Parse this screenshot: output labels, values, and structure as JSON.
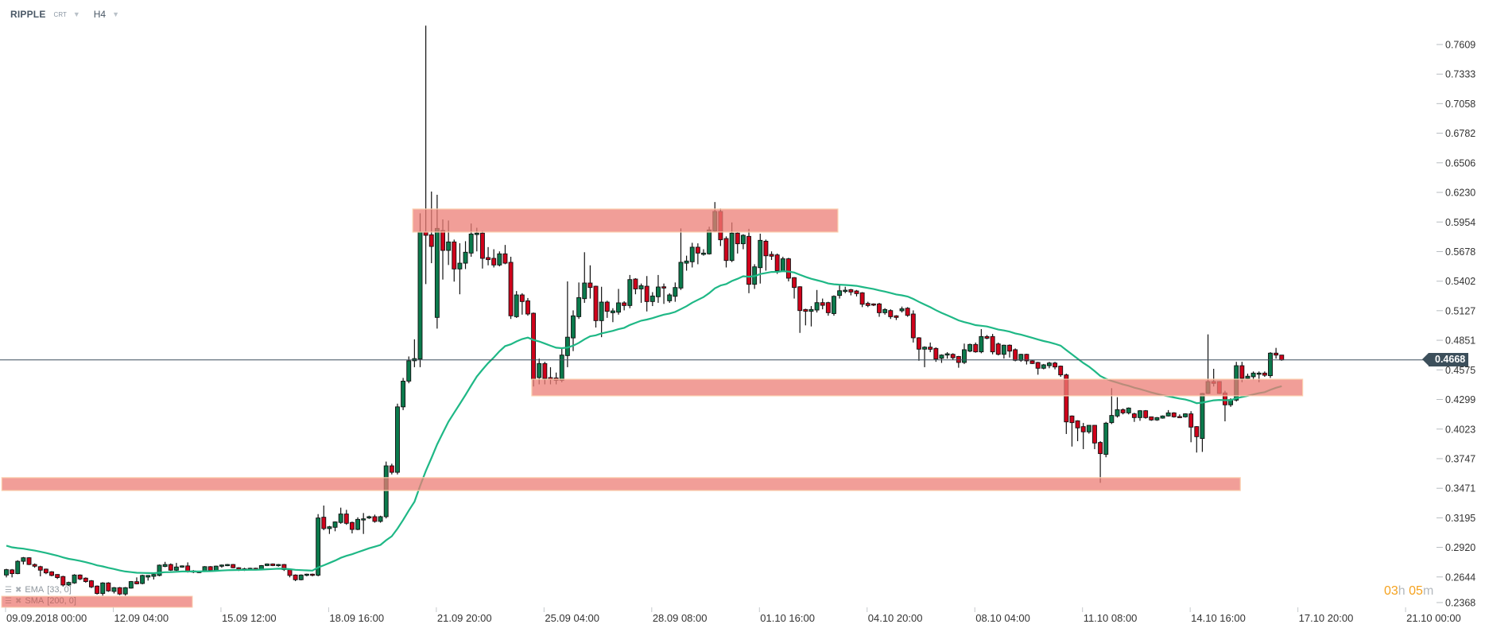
{
  "header": {
    "symbol": "RIPPLE",
    "type": "CRT",
    "timeframe": "H4"
  },
  "indicators": [
    {
      "name": "EMA",
      "params": "[33, 0]",
      "color": "#1fb886"
    },
    {
      "name": "SMA",
      "params": "[200,  0]",
      "highlighted": true
    }
  ],
  "countdown": {
    "hours": "03",
    "hours_unit": "h",
    "minutes": "05",
    "minutes_unit": "m"
  },
  "colors": {
    "up": "#0b7a4c",
    "down": "#d0021b",
    "zone": "#ec7e76",
    "price_line": "#3c4f5b"
  },
  "chart_data": {
    "type": "candlestick",
    "title": "RIPPLE H4",
    "current_price": "0.4668",
    "ylim": [
      0.2368,
      0.7609
    ],
    "y_ticks": [
      "0.7609",
      "0.7333",
      "0.7058",
      "0.6782",
      "0.6506",
      "0.6230",
      "0.5954",
      "0.5678",
      "0.5402",
      "0.5127",
      "0.4851",
      "0.4575",
      "0.4299",
      "0.4023",
      "0.3747",
      "0.3471",
      "0.3195",
      "0.2920",
      "0.2644",
      "0.2368"
    ],
    "x_ticks": [
      "09.09.2018  00:00",
      "12.09  04:00",
      "15.09  12:00",
      "18.09  16:00",
      "21.09  20:00",
      "25.09  04:00",
      "28.09  08:00",
      "01.10  16:00",
      "04.10  20:00",
      "08.10  04:00",
      "11.10  08:00",
      "14.10  16:00",
      "17.10  20:00",
      "21.10  00:00"
    ],
    "x_tick_every_candles": 19,
    "ema_period": 33,
    "zones": [
      {
        "price_low": 0.586,
        "price_high": 0.6075,
        "from_index": 71.7,
        "to_index": 146.7
      },
      {
        "price_low": 0.4333,
        "price_high": 0.4488,
        "from_index": 92.7,
        "to_index": 228.7
      },
      {
        "price_low": 0.345,
        "price_high": 0.357,
        "from_index": -0.8,
        "to_index": 217.7
      }
    ],
    "candles_ohlc": [
      [
        0.2662,
        0.272,
        0.264,
        0.2712
      ],
      [
        0.271,
        0.2718,
        0.264,
        0.2675
      ],
      [
        0.2675,
        0.28,
        0.267,
        0.279
      ],
      [
        0.279,
        0.283,
        0.276,
        0.2823
      ],
      [
        0.2823,
        0.2828,
        0.2755,
        0.276
      ],
      [
        0.276,
        0.277,
        0.273,
        0.2744
      ],
      [
        0.274,
        0.2748,
        0.265,
        0.2707
      ],
      [
        0.2717,
        0.2722,
        0.267,
        0.2682
      ],
      [
        0.2692,
        0.2698,
        0.265,
        0.2658
      ],
      [
        0.2667,
        0.267,
        0.2625,
        0.2638
      ],
      [
        0.2648,
        0.2655,
        0.2555,
        0.2569
      ],
      [
        0.2569,
        0.26,
        0.256,
        0.2593
      ],
      [
        0.2588,
        0.267,
        0.258,
        0.2662
      ],
      [
        0.2662,
        0.2668,
        0.2615,
        0.2625
      ],
      [
        0.2633,
        0.264,
        0.259,
        0.2601
      ],
      [
        0.2608,
        0.2615,
        0.254,
        0.2551
      ],
      [
        0.2559,
        0.2565,
        0.248,
        0.249
      ],
      [
        0.249,
        0.2595,
        0.247,
        0.2588
      ],
      [
        0.2588,
        0.2595,
        0.2505,
        0.2514
      ],
      [
        0.2509,
        0.255,
        0.249,
        0.2544
      ],
      [
        0.2544,
        0.255,
        0.2475,
        0.2485
      ],
      [
        0.2485,
        0.255,
        0.247,
        0.2544
      ],
      [
        0.254,
        0.2606,
        0.2535,
        0.2601
      ],
      [
        0.26,
        0.264,
        0.2575,
        0.258
      ],
      [
        0.2583,
        0.2665,
        0.2575,
        0.2658
      ],
      [
        0.2643,
        0.2662,
        0.261,
        0.2658
      ],
      [
        0.265,
        0.2672,
        0.262,
        0.2667
      ],
      [
        0.2658,
        0.276,
        0.265,
        0.2754
      ],
      [
        0.2742,
        0.2785,
        0.2735,
        0.276
      ],
      [
        0.276,
        0.277,
        0.27,
        0.2707
      ],
      [
        0.2707,
        0.2775,
        0.27,
        0.2737
      ],
      [
        0.2737,
        0.2752,
        0.273,
        0.2747
      ],
      [
        0.2747,
        0.278,
        0.2685,
        0.2692
      ],
      [
        0.27,
        0.2708,
        0.268,
        0.269
      ],
      [
        0.269,
        0.27,
        0.268,
        0.2695
      ],
      [
        0.2695,
        0.2745,
        0.269,
        0.274
      ],
      [
        0.274,
        0.2745,
        0.27,
        0.2705
      ],
      [
        0.2705,
        0.275,
        0.27,
        0.2745
      ],
      [
        0.2745,
        0.276,
        0.273,
        0.2755
      ],
      [
        0.2755,
        0.2765,
        0.2745,
        0.276
      ],
      [
        0.276,
        0.2765,
        0.2725,
        0.273
      ],
      [
        0.273,
        0.2735,
        0.27,
        0.2715
      ],
      [
        0.2715,
        0.273,
        0.27,
        0.272
      ],
      [
        0.272,
        0.273,
        0.2705,
        0.2725
      ],
      [
        0.2725,
        0.273,
        0.271,
        0.2715
      ],
      [
        0.2715,
        0.2755,
        0.2712,
        0.275
      ],
      [
        0.275,
        0.277,
        0.2745,
        0.2765
      ],
      [
        0.2765,
        0.277,
        0.2745,
        0.275
      ],
      [
        0.275,
        0.2765,
        0.274,
        0.276
      ],
      [
        0.276,
        0.2765,
        0.27,
        0.2712
      ],
      [
        0.2712,
        0.2715,
        0.264,
        0.2658
      ],
      [
        0.2662,
        0.2668,
        0.2605,
        0.2618
      ],
      [
        0.2618,
        0.2668,
        0.2612,
        0.2662
      ],
      [
        0.2662,
        0.2675,
        0.265,
        0.267
      ],
      [
        0.267,
        0.2675,
        0.265,
        0.266
      ],
      [
        0.266,
        0.323,
        0.265,
        0.3194
      ],
      [
        0.3201,
        0.331,
        0.308,
        0.3095
      ],
      [
        0.3095,
        0.312,
        0.3045,
        0.3112
      ],
      [
        0.3107,
        0.3162,
        0.307,
        0.3157
      ],
      [
        0.3152,
        0.329,
        0.314,
        0.3231
      ],
      [
        0.3231,
        0.327,
        0.313,
        0.3144
      ],
      [
        0.3152,
        0.316,
        0.305,
        0.3087
      ],
      [
        0.3087,
        0.32,
        0.308,
        0.3181
      ],
      [
        0.3181,
        0.324,
        0.3045,
        0.3186
      ],
      [
        0.3194,
        0.3215,
        0.3185,
        0.3206
      ],
      [
        0.3206,
        0.3225,
        0.315,
        0.3162
      ],
      [
        0.3162,
        0.3215,
        0.315,
        0.3206
      ],
      [
        0.3206,
        0.372,
        0.319,
        0.368
      ],
      [
        0.368,
        0.37,
        0.36,
        0.362
      ],
      [
        0.362,
        0.426,
        0.36,
        0.423
      ],
      [
        0.423,
        0.45,
        0.42,
        0.447
      ],
      [
        0.447,
        0.47,
        0.445,
        0.466
      ],
      [
        0.466,
        0.486,
        0.46,
        0.468
      ],
      [
        0.4676,
        0.6035,
        0.46,
        0.5862
      ],
      [
        0.5862,
        0.7785,
        0.5375,
        0.583
      ],
      [
        0.5835,
        0.6238,
        0.557,
        0.5726
      ],
      [
        0.5064,
        0.6208,
        0.496,
        0.5894
      ],
      [
        0.5874,
        0.5978,
        0.5417,
        0.5689
      ],
      [
        0.5689,
        0.5968,
        0.5553,
        0.5768
      ],
      [
        0.5768,
        0.579,
        0.5398,
        0.5516
      ],
      [
        0.5516,
        0.5756,
        0.528,
        0.557
      ],
      [
        0.557,
        0.5775,
        0.5515,
        0.5672
      ],
      [
        0.5664,
        0.594,
        0.563,
        0.5842
      ],
      [
        0.5837,
        0.59,
        0.568,
        0.585
      ],
      [
        0.585,
        0.587,
        0.552,
        0.5615
      ],
      [
        0.5622,
        0.572,
        0.555,
        0.5603
      ],
      [
        0.5615,
        0.57,
        0.553,
        0.5553
      ],
      [
        0.5553,
        0.568,
        0.554,
        0.5657
      ],
      [
        0.5657,
        0.574,
        0.556,
        0.557
      ],
      [
        0.5578,
        0.563,
        0.505,
        0.5079
      ],
      [
        0.5071,
        0.531,
        0.506,
        0.5274
      ],
      [
        0.5274,
        0.529,
        0.509,
        0.5212
      ],
      [
        0.5219,
        0.5245,
        0.508,
        0.5096
      ],
      [
        0.5103,
        0.511,
        0.442,
        0.449
      ],
      [
        0.4503,
        0.468,
        0.444,
        0.4634
      ],
      [
        0.4634,
        0.465,
        0.444,
        0.4495
      ],
      [
        0.4503,
        0.46,
        0.444,
        0.4486
      ],
      [
        0.45,
        0.455,
        0.444,
        0.4478
      ],
      [
        0.4478,
        0.477,
        0.446,
        0.4713
      ],
      [
        0.4708,
        0.54,
        0.46,
        0.488
      ],
      [
        0.4873,
        0.513,
        0.475,
        0.5079
      ],
      [
        0.5071,
        0.539,
        0.505,
        0.5249
      ],
      [
        0.5239,
        0.5672,
        0.52,
        0.5385
      ],
      [
        0.5385,
        0.555,
        0.524,
        0.5343
      ],
      [
        0.5355,
        0.536,
        0.497,
        0.5034
      ],
      [
        0.5034,
        0.535,
        0.488,
        0.5207
      ],
      [
        0.5207,
        0.522,
        0.506,
        0.5121
      ],
      [
        0.5108,
        0.515,
        0.502,
        0.5125
      ],
      [
        0.5113,
        0.533,
        0.509,
        0.52
      ],
      [
        0.52,
        0.5215,
        0.513,
        0.5175
      ],
      [
        0.5175,
        0.546,
        0.515,
        0.5417
      ],
      [
        0.5422,
        0.543,
        0.528,
        0.533
      ],
      [
        0.533,
        0.538,
        0.52,
        0.536
      ],
      [
        0.5355,
        0.545,
        0.512,
        0.5212
      ],
      [
        0.5212,
        0.53,
        0.517,
        0.5264
      ],
      [
        0.5257,
        0.546,
        0.52,
        0.5348
      ],
      [
        0.535,
        0.538,
        0.519,
        0.5338
      ],
      [
        0.5219,
        0.529,
        0.52,
        0.5274
      ],
      [
        0.5261,
        0.539,
        0.521,
        0.5343
      ],
      [
        0.5338,
        0.5894,
        0.532,
        0.5578
      ],
      [
        0.557,
        0.564,
        0.55,
        0.559
      ],
      [
        0.5583,
        0.576,
        0.553,
        0.5719
      ],
      [
        0.5719,
        0.5755,
        0.556,
        0.5664
      ],
      [
        0.5652,
        0.57,
        0.564,
        0.5664
      ],
      [
        0.5657,
        0.591,
        0.565,
        0.588
      ],
      [
        0.587,
        0.614,
        0.586,
        0.6052
      ],
      [
        0.6052,
        0.608,
        0.573,
        0.5788
      ],
      [
        0.58,
        0.582,
        0.553,
        0.5595
      ],
      [
        0.5595,
        0.595,
        0.558,
        0.585
      ],
      [
        0.585,
        0.586,
        0.566,
        0.5751
      ],
      [
        0.5751,
        0.584,
        0.57,
        0.583
      ],
      [
        0.582,
        0.589,
        0.529,
        0.5373
      ],
      [
        0.5373,
        0.556,
        0.533,
        0.5536
      ],
      [
        0.5528,
        0.5845,
        0.538,
        0.5783
      ],
      [
        0.5775,
        0.579,
        0.55,
        0.5639
      ],
      [
        0.5652,
        0.568,
        0.56,
        0.5635
      ],
      [
        0.5647,
        0.566,
        0.547,
        0.55
      ],
      [
        0.55,
        0.563,
        0.549,
        0.5611
      ],
      [
        0.5611,
        0.562,
        0.54,
        0.543
      ],
      [
        0.5435,
        0.544,
        0.524,
        0.5343
      ],
      [
        0.535,
        0.5355,
        0.492,
        0.5128
      ],
      [
        0.5138,
        0.5145,
        0.499,
        0.5121
      ],
      [
        0.5121,
        0.517,
        0.498,
        0.5138
      ],
      [
        0.5133,
        0.532,
        0.511,
        0.5202
      ],
      [
        0.5202,
        0.524,
        0.514,
        0.5177
      ],
      [
        0.5202,
        0.521,
        0.508,
        0.5108
      ],
      [
        0.51,
        0.527,
        0.508,
        0.5261
      ],
      [
        0.5269,
        0.537,
        0.524,
        0.5313
      ],
      [
        0.5306,
        0.535,
        0.529,
        0.5318
      ],
      [
        0.5323,
        0.533,
        0.527,
        0.5301
      ],
      [
        0.5311,
        0.532,
        0.526,
        0.5286
      ],
      [
        0.5294,
        0.53,
        0.516,
        0.5187
      ],
      [
        0.5195,
        0.521,
        0.516,
        0.5175
      ],
      [
        0.519,
        0.5195,
        0.517,
        0.518
      ],
      [
        0.519,
        0.52,
        0.507,
        0.5108
      ],
      [
        0.5108,
        0.515,
        0.509,
        0.5138
      ],
      [
        0.5128,
        0.514,
        0.505,
        0.5071
      ],
      [
        0.5079,
        0.5085,
        0.504,
        0.5064
      ],
      [
        0.5126,
        0.5165,
        0.511,
        0.5145
      ],
      [
        0.515,
        0.516,
        0.507,
        0.5083
      ],
      [
        0.5096,
        0.513,
        0.483,
        0.4874
      ],
      [
        0.4874,
        0.488,
        0.466,
        0.4768
      ],
      [
        0.4768,
        0.4795,
        0.46,
        0.4787
      ],
      [
        0.4787,
        0.483,
        0.474,
        0.4767
      ],
      [
        0.4775,
        0.4785,
        0.465,
        0.4676
      ],
      [
        0.4683,
        0.472,
        0.464,
        0.4713
      ],
      [
        0.4713,
        0.474,
        0.468,
        0.4725
      ],
      [
        0.472,
        0.473,
        0.467,
        0.4688
      ],
      [
        0.47,
        0.4705,
        0.4595,
        0.4644
      ],
      [
        0.4644,
        0.482,
        0.463,
        0.4763
      ],
      [
        0.475,
        0.482,
        0.474,
        0.4812
      ],
      [
        0.4812,
        0.483,
        0.4735,
        0.4743
      ],
      [
        0.4743,
        0.4955,
        0.473,
        0.4886
      ],
      [
        0.4886,
        0.49,
        0.486,
        0.487
      ],
      [
        0.4886,
        0.491,
        0.472,
        0.4743
      ],
      [
        0.4817,
        0.483,
        0.471,
        0.472
      ],
      [
        0.472,
        0.481,
        0.468,
        0.4805
      ],
      [
        0.4805,
        0.4812,
        0.469,
        0.475
      ],
      [
        0.4763,
        0.4775,
        0.4655,
        0.4664
      ],
      [
        0.4664,
        0.4725,
        0.465,
        0.472
      ],
      [
        0.472,
        0.4725,
        0.4625,
        0.4659
      ],
      [
        0.4659,
        0.4665,
        0.463,
        0.4634
      ],
      [
        0.4644,
        0.465,
        0.453,
        0.459
      ],
      [
        0.459,
        0.463,
        0.458,
        0.4622
      ],
      [
        0.4614,
        0.465,
        0.459,
        0.4639
      ],
      [
        0.4639,
        0.465,
        0.458,
        0.4602
      ],
      [
        0.461,
        0.4615,
        0.451,
        0.4528
      ],
      [
        0.4528,
        0.454,
        0.3977,
        0.409
      ],
      [
        0.4145,
        0.415,
        0.386,
        0.4083
      ],
      [
        0.41,
        0.4105,
        0.391,
        0.4034
      ],
      [
        0.4046,
        0.408,
        0.3836,
        0.3997
      ],
      [
        0.3997,
        0.406,
        0.398,
        0.4058
      ],
      [
        0.4058,
        0.406,
        0.3836,
        0.3893
      ],
      [
        0.3898,
        0.391,
        0.3522,
        0.3794
      ],
      [
        0.3787,
        0.409,
        0.376,
        0.4078
      ],
      [
        0.4083,
        0.4404,
        0.407,
        0.415
      ],
      [
        0.4145,
        0.432,
        0.413,
        0.4204
      ],
      [
        0.4204,
        0.4215,
        0.416,
        0.4174
      ],
      [
        0.4174,
        0.4225,
        0.416,
        0.4219
      ],
      [
        0.4165,
        0.4175,
        0.409,
        0.413
      ],
      [
        0.413,
        0.42,
        0.41,
        0.4194
      ],
      [
        0.4194,
        0.42,
        0.412,
        0.413
      ],
      [
        0.4137,
        0.414,
        0.41,
        0.4108
      ],
      [
        0.4108,
        0.4135,
        0.41,
        0.413
      ],
      [
        0.4125,
        0.415,
        0.412,
        0.4145
      ],
      [
        0.4145,
        0.42,
        0.414,
        0.4174
      ],
      [
        0.4174,
        0.418,
        0.413,
        0.4137
      ],
      [
        0.414,
        0.416,
        0.413,
        0.4135
      ],
      [
        0.4137,
        0.417,
        0.413,
        0.4165
      ],
      [
        0.4165,
        0.419,
        0.39,
        0.4041
      ],
      [
        0.4046,
        0.405,
        0.3804,
        0.3952
      ],
      [
        0.3935,
        0.436,
        0.381,
        0.4355
      ],
      [
        0.4355,
        0.4906,
        0.435,
        0.4466
      ],
      [
        0.4466,
        0.4585,
        0.442,
        0.4449
      ],
      [
        0.4466,
        0.447,
        0.435,
        0.4355
      ],
      [
        0.436,
        0.438,
        0.4095,
        0.4249
      ],
      [
        0.4249,
        0.431,
        0.423,
        0.4298
      ],
      [
        0.4293,
        0.465,
        0.428,
        0.4614
      ],
      [
        0.4614,
        0.465,
        0.446,
        0.4496
      ],
      [
        0.4496,
        0.454,
        0.449,
        0.4516
      ],
      [
        0.4511,
        0.456,
        0.448,
        0.4545
      ],
      [
        0.454,
        0.456,
        0.446,
        0.4545
      ],
      [
        0.4545,
        0.456,
        0.451,
        0.4525
      ],
      [
        0.4521,
        0.474,
        0.45,
        0.4731
      ],
      [
        0.4731,
        0.478,
        0.468,
        0.4713
      ],
      [
        0.4713,
        0.4713,
        0.466,
        0.4668
      ]
    ]
  }
}
